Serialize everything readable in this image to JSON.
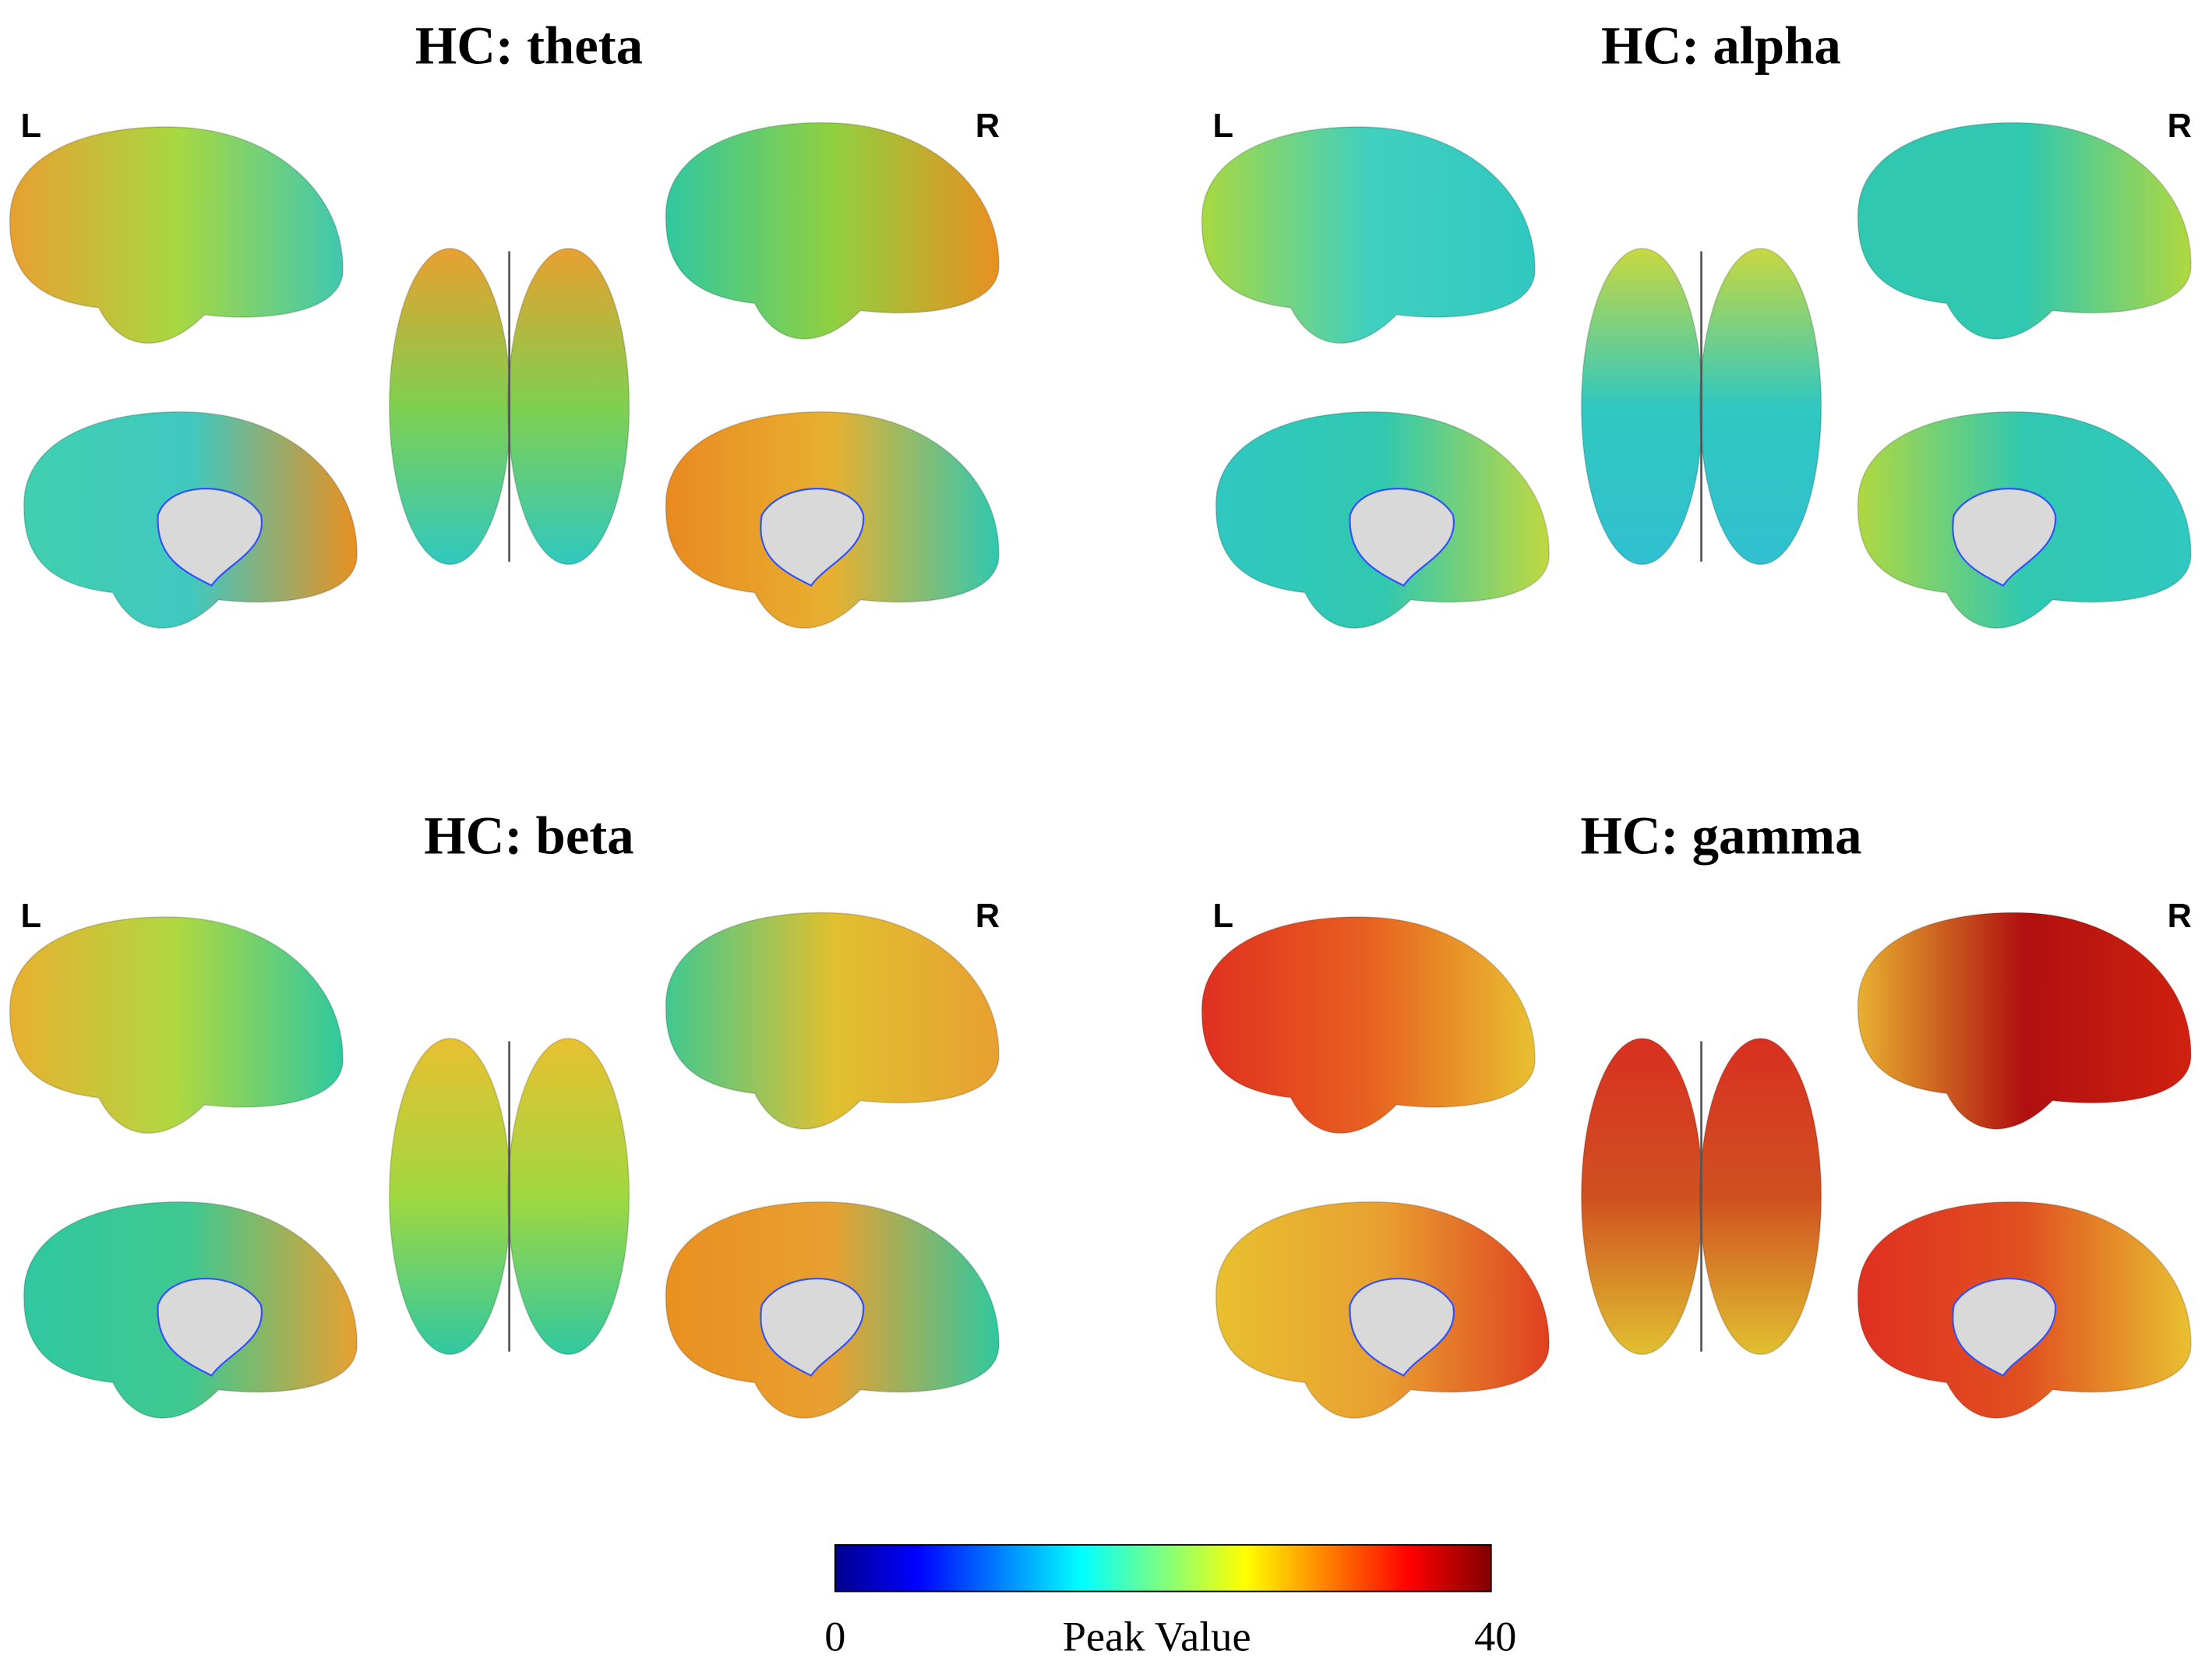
{
  "panels": [
    {
      "title": "HC: theta",
      "left": "L",
      "right": "R"
    },
    {
      "title": "HC: alpha",
      "left": "L",
      "right": "R"
    },
    {
      "title": "HC: beta",
      "left": "L",
      "right": "R"
    },
    {
      "title": "HC: gamma",
      "left": "L",
      "right": "R"
    }
  ],
  "colorbar": {
    "label": "Peak Value",
    "min": 0,
    "max": 40
  }
}
